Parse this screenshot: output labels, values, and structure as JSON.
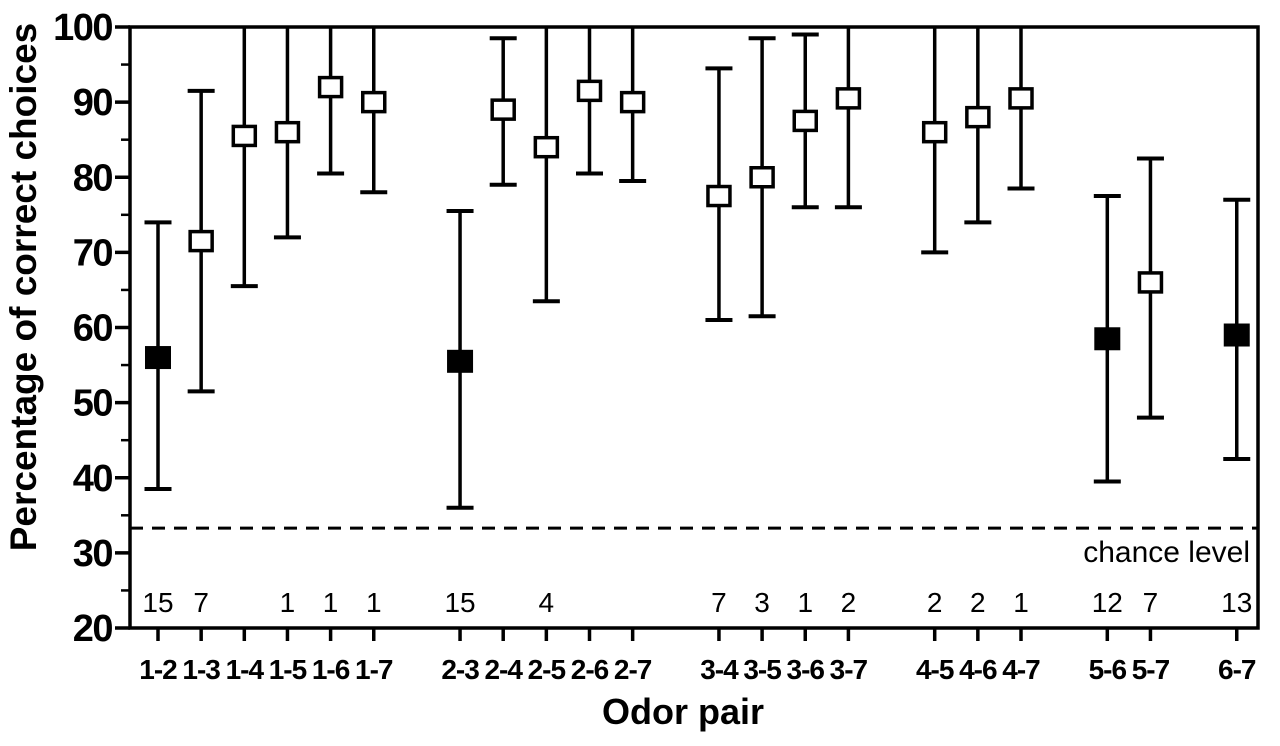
{
  "figure": {
    "background": "#ffffff",
    "ink": "#000000"
  },
  "chart_data": {
    "type": "scatter",
    "title": "",
    "ylabel": "Percentage of correct choices",
    "xlabel": "Odor pair",
    "ylim": [
      20,
      100
    ],
    "yticks": [
      20,
      30,
      40,
      50,
      60,
      70,
      80,
      90,
      100
    ],
    "y_minor_tick_step": 5,
    "grid": false,
    "legend_position": "none",
    "chance_level": 33.3,
    "chance_level_label": "chance level",
    "group_sizes": [
      6,
      5,
      4,
      3,
      2,
      1
    ],
    "points": [
      {
        "pair": "1-2",
        "mean": 56,
        "lo": 38.5,
        "hi": 74,
        "marker": "filled",
        "n": "15"
      },
      {
        "pair": "1-3",
        "mean": 71.5,
        "lo": 51.5,
        "hi": 91.5,
        "marker": "open",
        "n": "7"
      },
      {
        "pair": "1-4",
        "mean": 85.5,
        "lo": 65.5,
        "hi": 100,
        "marker": "open",
        "n": ""
      },
      {
        "pair": "1-5",
        "mean": 86,
        "lo": 72,
        "hi": 100,
        "marker": "open",
        "n": "1"
      },
      {
        "pair": "1-6",
        "mean": 92,
        "lo": 80.5,
        "hi": 100,
        "marker": "open",
        "n": "1"
      },
      {
        "pair": "1-7",
        "mean": 90,
        "lo": 78,
        "hi": 100,
        "marker": "open",
        "n": "1"
      },
      {
        "pair": "2-3",
        "mean": 55.5,
        "lo": 36,
        "hi": 75.5,
        "marker": "filled",
        "n": "15"
      },
      {
        "pair": "2-4",
        "mean": 89,
        "lo": 79,
        "hi": 98.5,
        "marker": "open",
        "n": ""
      },
      {
        "pair": "2-5",
        "mean": 84,
        "lo": 63.5,
        "hi": 100,
        "marker": "open",
        "n": "4"
      },
      {
        "pair": "2-6",
        "mean": 91.5,
        "lo": 80.5,
        "hi": 100,
        "marker": "open",
        "n": ""
      },
      {
        "pair": "2-7",
        "mean": 90,
        "lo": 79.5,
        "hi": 100,
        "marker": "open",
        "n": ""
      },
      {
        "pair": "3-4",
        "mean": 77.5,
        "lo": 61,
        "hi": 94.5,
        "marker": "open",
        "n": "7"
      },
      {
        "pair": "3-5",
        "mean": 80,
        "lo": 61.5,
        "hi": 98.5,
        "marker": "open",
        "n": "3"
      },
      {
        "pair": "3-6",
        "mean": 87.5,
        "lo": 76,
        "hi": 99,
        "marker": "open",
        "n": "1"
      },
      {
        "pair": "3-7",
        "mean": 90.5,
        "lo": 76,
        "hi": 100,
        "marker": "open",
        "n": "2"
      },
      {
        "pair": "4-5",
        "mean": 86,
        "lo": 70,
        "hi": 100,
        "marker": "open",
        "n": "2"
      },
      {
        "pair": "4-6",
        "mean": 88,
        "lo": 74,
        "hi": 100,
        "marker": "open",
        "n": "2"
      },
      {
        "pair": "4-7",
        "mean": 90.5,
        "lo": 78.5,
        "hi": 100,
        "marker": "open",
        "n": "1"
      },
      {
        "pair": "5-6",
        "mean": 58.5,
        "lo": 39.5,
        "hi": 77.5,
        "marker": "filled",
        "n": "12"
      },
      {
        "pair": "5-7",
        "mean": 66,
        "lo": 48,
        "hi": 82.5,
        "marker": "open",
        "n": "7"
      },
      {
        "pair": "6-7",
        "mean": 59,
        "lo": 42.5,
        "hi": 77,
        "marker": "filled",
        "n": "13"
      }
    ]
  }
}
